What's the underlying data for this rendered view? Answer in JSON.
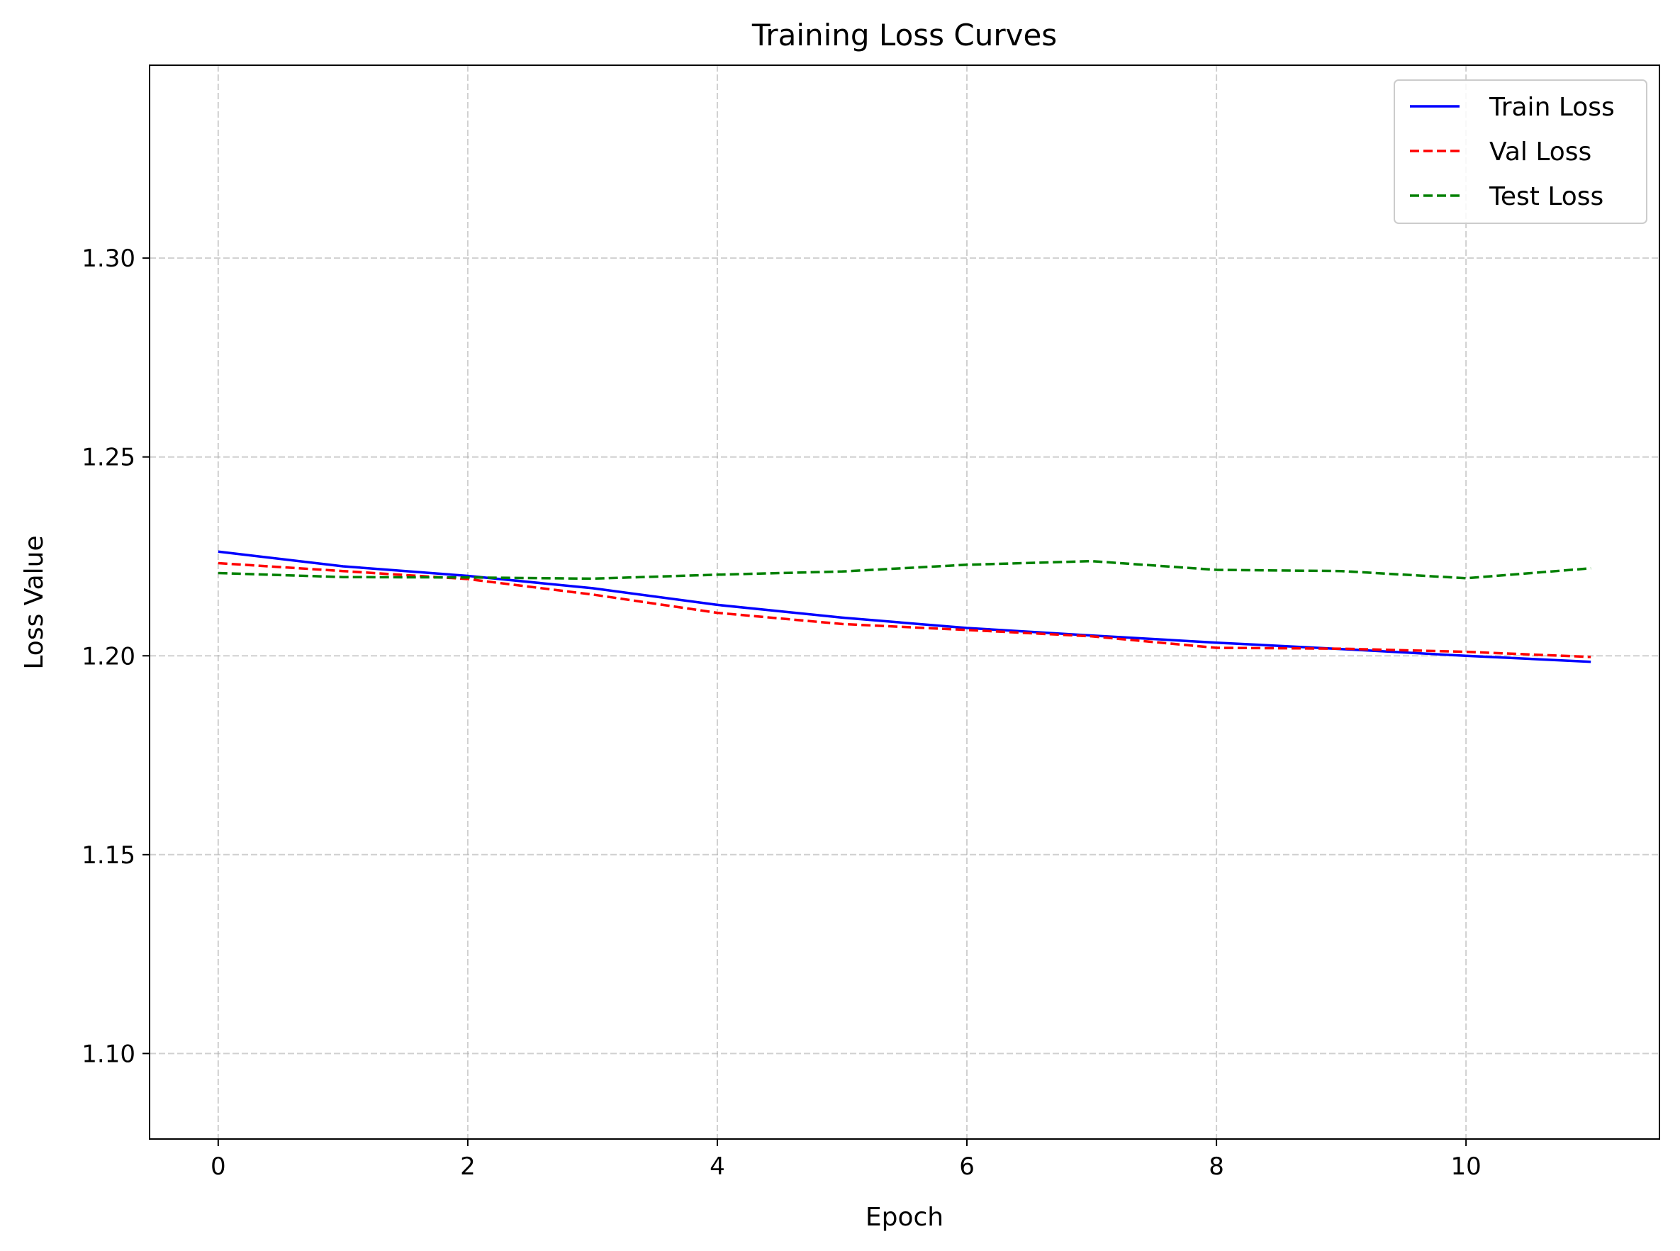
{
  "chart_data": {
    "type": "line",
    "title": "Training Loss Curves",
    "xlabel": "Epoch",
    "ylabel": "Loss Value",
    "x": [
      0,
      1,
      2,
      3,
      4,
      5,
      6,
      7,
      8,
      9,
      10,
      11
    ],
    "xlim": [
      -0.55,
      11.55
    ],
    "ylim": [
      1.0785,
      1.3485
    ],
    "xticks": [
      0,
      2,
      4,
      6,
      8,
      10
    ],
    "yticks": [
      1.1,
      1.15,
      1.2,
      1.25,
      1.3
    ],
    "xtick_labels": [
      "0",
      "2",
      "4",
      "6",
      "8",
      "10"
    ],
    "ytick_labels": [
      "1.10",
      "1.15",
      "1.20",
      "1.25",
      "1.30"
    ],
    "grid": true,
    "legend_position": "top-right",
    "series": [
      {
        "name": "Train Loss",
        "color": "#0000ff",
        "style": "solid",
        "values": [
          1.2262,
          1.2225,
          1.2201,
          1.217,
          1.2128,
          1.2096,
          1.207,
          1.2051,
          1.2033,
          1.2017,
          1.2,
          1.1985
        ]
      },
      {
        "name": "Val Loss",
        "color": "#ff0000",
        "style": "dashed",
        "values": [
          1.2233,
          1.2213,
          1.2193,
          1.2154,
          1.2108,
          1.208,
          1.2065,
          1.2049,
          1.202,
          1.2018,
          1.201,
          1.1997
        ]
      },
      {
        "name": "Test Loss",
        "color": "#008000",
        "style": "dashed",
        "values": [
          1.2208,
          1.2198,
          1.2197,
          1.2194,
          1.2204,
          1.2212,
          1.2229,
          1.2238,
          1.2216,
          1.2213,
          1.2195,
          1.222
        ]
      }
    ]
  }
}
